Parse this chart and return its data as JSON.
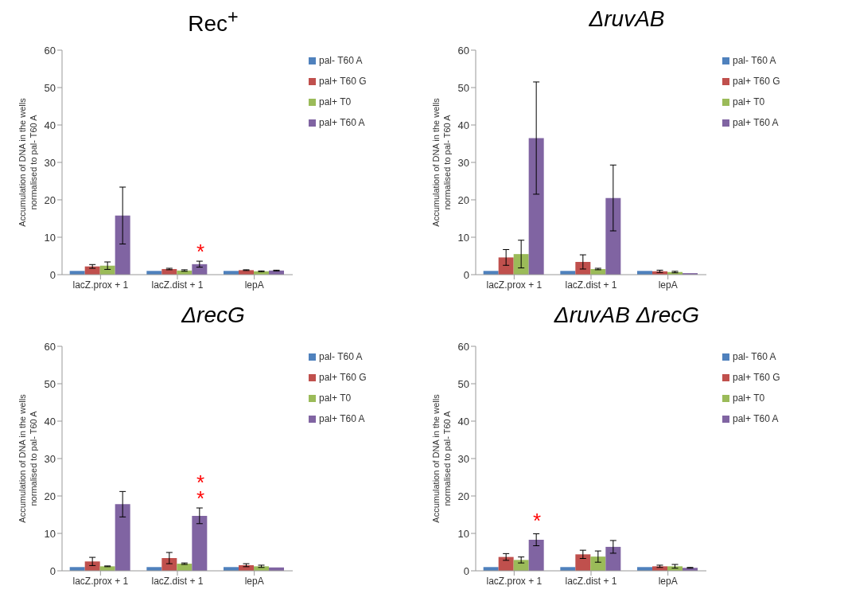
{
  "chart_data": [
    {
      "type": "bar",
      "title": "Rec$^{+}$",
      "ylabel": "Accumulation of DNA in the wells normalised to pal- T60 A",
      "categories": [
        "lacZ.prox + 1",
        "lacZ.dist + 1",
        "lepA"
      ],
      "ylim": [
        0,
        60
      ],
      "yticks": [
        0,
        10,
        20,
        30,
        40,
        50,
        60
      ],
      "grid": false,
      "legend": "top right",
      "series": [
        {
          "name": "pal- T60 A",
          "color": "#4f81bd",
          "values": [
            1,
            1,
            1
          ]
        },
        {
          "name": "pal+ T60 G",
          "color": "#c0504d",
          "values": [
            2.2,
            1.5,
            1.2
          ],
          "errors": [
            0.5,
            0.2,
            0.1
          ]
        },
        {
          "name": "pal+ T0",
          "color": "#9bbb59",
          "values": [
            2.4,
            1.1,
            0.9
          ],
          "errors": [
            1,
            0.2,
            0.1
          ]
        },
        {
          "name": "pal+ T60 A",
          "color": "#8064a2",
          "values": [
            15.8,
            2.8,
            1.1
          ],
          "errors": [
            7.6,
            0.8,
            0.1
          ]
        }
      ],
      "annotations": [
        "*"
      ]
    },
    {
      "type": "bar",
      "title": "ΔruvAB",
      "ylabel": "Accumulation of DNA in the wells normalised to pal- T60 A",
      "categories": [
        "lacZ.prox + 1",
        "lacZ.dist + 1",
        "lepA"
      ],
      "ylim": [
        0,
        60
      ],
      "yticks": [
        0,
        10,
        20,
        30,
        40,
        50,
        60
      ],
      "grid": false,
      "legend": "top right",
      "series": [
        {
          "name": "pal- T60 A",
          "color": "#4f81bd",
          "values": [
            1,
            1,
            1
          ]
        },
        {
          "name": "pal+ T60 G",
          "color": "#c0504d",
          "values": [
            4.6,
            3.4,
            0.9
          ],
          "errors": [
            2.1,
            1.9,
            0.3
          ]
        },
        {
          "name": "pal+ T0",
          "color": "#9bbb59",
          "values": [
            5.5,
            1.5,
            0.7
          ],
          "errors": [
            3.7,
            0.2,
            0.2
          ]
        },
        {
          "name": "pal+ T60 A",
          "color": "#8064a2",
          "values": [
            36.5,
            20.5,
            0.4
          ],
          "errors": [
            15,
            8.8,
            null
          ]
        }
      ]
    },
    {
      "type": "bar",
      "title": "ΔrecG",
      "ylabel": "Accumulation of DNA in the wells normalised to pal- T60 A",
      "categories": [
        "lacZ.prox + 1",
        "lacZ.dist + 1",
        "lepA"
      ],
      "ylim": [
        0,
        60
      ],
      "yticks": [
        0,
        10,
        20,
        30,
        40,
        50,
        60
      ],
      "grid": false,
      "legend": "top right",
      "series": [
        {
          "name": "pal- T60 A",
          "color": "#4f81bd",
          "values": [
            1,
            1,
            1
          ]
        },
        {
          "name": "pal+ T60 G",
          "color": "#c0504d",
          "values": [
            2.5,
            3.4,
            1.5
          ],
          "errors": [
            1.1,
            1.5,
            0.4
          ]
        },
        {
          "name": "pal+ T0",
          "color": "#9bbb59",
          "values": [
            1.2,
            1.9,
            1.2
          ],
          "errors": [
            0.1,
            0.2,
            0.3
          ]
        },
        {
          "name": "pal+ T60 A",
          "color": "#8064a2",
          "values": [
            17.8,
            14.7,
            0.9
          ],
          "errors": [
            3.4,
            2.1,
            null
          ]
        }
      ],
      "annotations": [
        "*",
        "*"
      ]
    },
    {
      "type": "bar",
      "title": "ΔruvAB ΔrecG",
      "ylabel": "Accumulation of DNA in the wells normalised to pal- T60 A",
      "categories": [
        "lacZ.prox + 1",
        "lacZ.dist + 1",
        "lepA"
      ],
      "ylim": [
        0,
        60
      ],
      "yticks": [
        0,
        10,
        20,
        30,
        40,
        50,
        60
      ],
      "grid": false,
      "legend": "top right",
      "series": [
        {
          "name": "pal- T60 A",
          "color": "#4f81bd",
          "values": [
            1,
            1,
            1
          ]
        },
        {
          "name": "pal+ T60 G",
          "color": "#c0504d",
          "values": [
            3.7,
            4.4,
            1.2
          ],
          "errors": [
            0.9,
            1.1,
            0.3
          ]
        },
        {
          "name": "pal+ T0",
          "color": "#9bbb59",
          "values": [
            2.9,
            3.8,
            1.2
          ],
          "errors": [
            0.8,
            1.5,
            0.5
          ]
        },
        {
          "name": "pal+ T60 A",
          "color": "#8064a2",
          "values": [
            8.3,
            6.4,
            0.8
          ],
          "errors": [
            1.6,
            1.7,
            0.1
          ]
        }
      ],
      "annotations": [
        "*"
      ]
    }
  ]
}
